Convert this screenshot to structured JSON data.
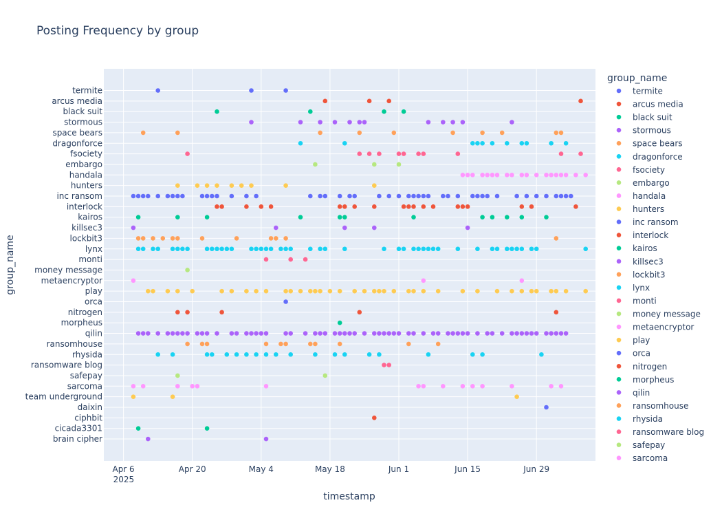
{
  "chart_data": {
    "type": "scatter",
    "title": "Posting Frequency by group",
    "xlabel": "timestamp",
    "ylabel": "group_name",
    "legend_title": "group_name",
    "legend_placement": "right",
    "grid": true,
    "x_ticks": [
      {
        "date": "2025-04-06",
        "label": "Apr 6",
        "sublabel": "2025"
      },
      {
        "date": "2025-04-20",
        "label": "Apr 20"
      },
      {
        "date": "2025-05-04",
        "label": "May 4"
      },
      {
        "date": "2025-05-18",
        "label": "May 18"
      },
      {
        "date": "2025-06-01",
        "label": "Jun 1"
      },
      {
        "date": "2025-06-15",
        "label": "Jun 15"
      },
      {
        "date": "2025-06-29",
        "label": "Jun 29"
      }
    ],
    "xlim": [
      "2025-04-02",
      "2025-07-11"
    ],
    "categories": [
      "termite",
      "arcus media",
      "black suit",
      "stormous",
      "space bears",
      "dragonforce",
      "fsociety",
      "embargo",
      "handala",
      "hunters",
      "inc ransom",
      "interlock",
      "kairos",
      "killsec3",
      "lockbit3",
      "lynx",
      "monti",
      "money message",
      "metaencryptor",
      "play",
      "orca",
      "nitrogen",
      "morpheus",
      "qilin",
      "ransomhouse",
      "rhysida",
      "ransomware blog",
      "safepay",
      "sarcoma",
      "team underground",
      "daixin",
      "ciphbit",
      "cicada3301",
      "brain cipher"
    ],
    "legend": [
      {
        "name": "termite",
        "color": "#636efa"
      },
      {
        "name": "arcus media",
        "color": "#EF553B"
      },
      {
        "name": "black suit",
        "color": "#00cc96"
      },
      {
        "name": "stormous",
        "color": "#ab63fa"
      },
      {
        "name": "space bears",
        "color": "#FFA15A"
      },
      {
        "name": "dragonforce",
        "color": "#19d3f3"
      },
      {
        "name": "fsociety",
        "color": "#FF6692"
      },
      {
        "name": "embargo",
        "color": "#B6E880"
      },
      {
        "name": "handala",
        "color": "#FF97FF"
      },
      {
        "name": "hunters",
        "color": "#FECB52"
      },
      {
        "name": "inc ransom",
        "color": "#636efa"
      },
      {
        "name": "interlock",
        "color": "#EF553B"
      },
      {
        "name": "kairos",
        "color": "#00cc96"
      },
      {
        "name": "killsec3",
        "color": "#ab63fa"
      },
      {
        "name": "lockbit3",
        "color": "#FFA15A"
      },
      {
        "name": "lynx",
        "color": "#19d3f3"
      },
      {
        "name": "monti",
        "color": "#FF6692"
      },
      {
        "name": "money message",
        "color": "#B6E880"
      },
      {
        "name": "metaencryptor",
        "color": "#FF97FF"
      },
      {
        "name": "play",
        "color": "#FECB52"
      },
      {
        "name": "orca",
        "color": "#636efa"
      },
      {
        "name": "nitrogen",
        "color": "#EF553B"
      },
      {
        "name": "morpheus",
        "color": "#00cc96"
      },
      {
        "name": "qilin",
        "color": "#ab63fa"
      },
      {
        "name": "ransomhouse",
        "color": "#FFA15A"
      },
      {
        "name": "rhysida",
        "color": "#19d3f3"
      },
      {
        "name": "ransomware blog",
        "color": "#FF6692"
      },
      {
        "name": "safepay",
        "color": "#B6E880"
      },
      {
        "name": "sarcoma",
        "color": "#FF97FF"
      }
    ],
    "series": [
      {
        "name": "termite",
        "color": "#636efa",
        "x": [
          "2025-04-13",
          "2025-05-02",
          "2025-05-09"
        ]
      },
      {
        "name": "arcus media",
        "color": "#EF553B",
        "x": [
          "2025-05-17",
          "2025-05-26",
          "2025-05-30",
          "2025-07-08"
        ]
      },
      {
        "name": "black suit",
        "color": "#00cc96",
        "x": [
          "2025-04-25",
          "2025-05-14",
          "2025-05-29",
          "2025-06-02"
        ]
      },
      {
        "name": "stormous",
        "color": "#ab63fa",
        "x": [
          "2025-05-02",
          "2025-05-12",
          "2025-05-16",
          "2025-05-19",
          "2025-05-22",
          "2025-05-24",
          "2025-05-25",
          "2025-06-07",
          "2025-06-10",
          "2025-06-12",
          "2025-06-14",
          "2025-06-24"
        ]
      },
      {
        "name": "space bears",
        "color": "#FFA15A",
        "x": [
          "2025-04-10",
          "2025-04-17",
          "2025-05-16",
          "2025-05-24",
          "2025-05-31",
          "2025-06-12",
          "2025-06-18",
          "2025-06-22",
          "2025-07-03",
          "2025-07-04"
        ]
      },
      {
        "name": "dragonforce",
        "color": "#19d3f3",
        "x": [
          "2025-05-12",
          "2025-05-21",
          "2025-06-16",
          "2025-06-17",
          "2025-06-18",
          "2025-06-20",
          "2025-06-23",
          "2025-06-26",
          "2025-06-27",
          "2025-07-02",
          "2025-07-05"
        ]
      },
      {
        "name": "fsociety",
        "color": "#FF6692",
        "x": [
          "2025-04-19",
          "2025-05-24",
          "2025-05-26",
          "2025-05-28",
          "2025-06-01",
          "2025-06-02",
          "2025-06-05",
          "2025-06-06",
          "2025-06-13",
          "2025-07-04",
          "2025-07-08"
        ]
      },
      {
        "name": "embargo",
        "color": "#B6E880",
        "x": [
          "2025-05-15",
          "2025-05-27",
          "2025-06-01"
        ]
      },
      {
        "name": "handala",
        "color": "#FF97FF",
        "x": [
          "2025-06-14",
          "2025-06-15",
          "2025-06-16",
          "2025-06-18",
          "2025-06-19",
          "2025-06-20",
          "2025-06-21",
          "2025-06-23",
          "2025-06-24",
          "2025-06-26",
          "2025-06-27",
          "2025-06-29",
          "2025-07-01",
          "2025-07-02",
          "2025-07-03",
          "2025-07-04",
          "2025-07-05",
          "2025-07-07",
          "2025-07-09"
        ]
      },
      {
        "name": "hunters",
        "color": "#FECB52",
        "x": [
          "2025-04-17",
          "2025-04-21",
          "2025-04-23",
          "2025-04-25",
          "2025-04-28",
          "2025-04-30",
          "2025-05-02",
          "2025-05-09",
          "2025-05-27"
        ]
      },
      {
        "name": "inc ransom",
        "color": "#636efa",
        "x": [
          "2025-04-08",
          "2025-04-09",
          "2025-04-10",
          "2025-04-11",
          "2025-04-13",
          "2025-04-15",
          "2025-04-16",
          "2025-04-17",
          "2025-04-18",
          "2025-04-22",
          "2025-04-23",
          "2025-04-24",
          "2025-04-25",
          "2025-04-28",
          "2025-05-01",
          "2025-05-03",
          "2025-05-14",
          "2025-05-16",
          "2025-05-17",
          "2025-05-20",
          "2025-05-22",
          "2025-05-23",
          "2025-05-28",
          "2025-05-30",
          "2025-06-01",
          "2025-06-03",
          "2025-06-04",
          "2025-06-05",
          "2025-06-06",
          "2025-06-07",
          "2025-06-10",
          "2025-06-11",
          "2025-06-13",
          "2025-06-16",
          "2025-06-17",
          "2025-06-18",
          "2025-06-19",
          "2025-06-21",
          "2025-06-25",
          "2025-06-27",
          "2025-06-29",
          "2025-07-01",
          "2025-07-03",
          "2025-07-04",
          "2025-07-05",
          "2025-07-06"
        ]
      },
      {
        "name": "interlock",
        "color": "#EF553B",
        "x": [
          "2025-04-25",
          "2025-04-26",
          "2025-05-01",
          "2025-05-04",
          "2025-05-06",
          "2025-05-20",
          "2025-05-21",
          "2025-05-23",
          "2025-05-27",
          "2025-06-02",
          "2025-06-03",
          "2025-06-04",
          "2025-06-06",
          "2025-06-08",
          "2025-06-13",
          "2025-06-14",
          "2025-06-15",
          "2025-06-26",
          "2025-06-28",
          "2025-07-07"
        ]
      },
      {
        "name": "kairos",
        "color": "#00cc96",
        "x": [
          "2025-04-09",
          "2025-04-17",
          "2025-04-23",
          "2025-05-12",
          "2025-05-20",
          "2025-05-21",
          "2025-06-04",
          "2025-06-18",
          "2025-06-20",
          "2025-06-23",
          "2025-06-26",
          "2025-07-01"
        ]
      },
      {
        "name": "killsec3",
        "color": "#ab63fa",
        "x": [
          "2025-04-08",
          "2025-05-07",
          "2025-05-21",
          "2025-05-27",
          "2025-06-15"
        ]
      },
      {
        "name": "lockbit3",
        "color": "#FFA15A",
        "x": [
          "2025-04-09",
          "2025-04-10",
          "2025-04-12",
          "2025-04-14",
          "2025-04-16",
          "2025-04-17",
          "2025-04-22",
          "2025-04-29",
          "2025-05-06",
          "2025-05-07",
          "2025-05-09",
          "2025-07-03"
        ]
      },
      {
        "name": "lynx",
        "color": "#19d3f3",
        "x": [
          "2025-04-09",
          "2025-04-10",
          "2025-04-12",
          "2025-04-13",
          "2025-04-16",
          "2025-04-17",
          "2025-04-18",
          "2025-04-19",
          "2025-04-23",
          "2025-04-24",
          "2025-04-25",
          "2025-04-26",
          "2025-04-27",
          "2025-04-28",
          "2025-05-02",
          "2025-05-03",
          "2025-05-04",
          "2025-05-05",
          "2025-05-06",
          "2025-05-08",
          "2025-05-09",
          "2025-05-10",
          "2025-05-14",
          "2025-05-16",
          "2025-05-17",
          "2025-05-21",
          "2025-05-29",
          "2025-06-01",
          "2025-06-02",
          "2025-06-04",
          "2025-06-05",
          "2025-06-06",
          "2025-06-07",
          "2025-06-08",
          "2025-06-09",
          "2025-06-13",
          "2025-06-17",
          "2025-06-20",
          "2025-06-21",
          "2025-06-23",
          "2025-06-24",
          "2025-06-25",
          "2025-06-26",
          "2025-06-28",
          "2025-06-29",
          "2025-07-09"
        ]
      },
      {
        "name": "monti",
        "color": "#FF6692",
        "x": [
          "2025-05-05",
          "2025-05-10",
          "2025-05-13"
        ]
      },
      {
        "name": "money message",
        "color": "#B6E880",
        "x": [
          "2025-04-19"
        ]
      },
      {
        "name": "metaencryptor",
        "color": "#FF97FF",
        "x": [
          "2025-04-08",
          "2025-06-06",
          "2025-06-26"
        ]
      },
      {
        "name": "play",
        "color": "#FECB52",
        "x": [
          "2025-04-11",
          "2025-04-12",
          "2025-04-15",
          "2025-04-17",
          "2025-04-20",
          "2025-04-26",
          "2025-04-28",
          "2025-05-01",
          "2025-05-03",
          "2025-05-05",
          "2025-05-09",
          "2025-05-10",
          "2025-05-12",
          "2025-05-14",
          "2025-05-15",
          "2025-05-16",
          "2025-05-18",
          "2025-05-20",
          "2025-05-23",
          "2025-05-25",
          "2025-05-27",
          "2025-05-28",
          "2025-05-29",
          "2025-05-31",
          "2025-06-03",
          "2025-06-04",
          "2025-06-06",
          "2025-06-09",
          "2025-06-14",
          "2025-06-17",
          "2025-06-21",
          "2025-06-24",
          "2025-06-26",
          "2025-06-28",
          "2025-06-29",
          "2025-07-02",
          "2025-07-03",
          "2025-07-05",
          "2025-07-09"
        ]
      },
      {
        "name": "orca",
        "color": "#636efa",
        "x": [
          "2025-05-09"
        ]
      },
      {
        "name": "nitrogen",
        "color": "#EF553B",
        "x": [
          "2025-04-17",
          "2025-04-19",
          "2025-04-26",
          "2025-05-24",
          "2025-07-03"
        ]
      },
      {
        "name": "morpheus",
        "color": "#00cc96",
        "x": [
          "2025-05-20"
        ]
      },
      {
        "name": "qilin",
        "color": "#ab63fa",
        "x": [
          "2025-04-09",
          "2025-04-10",
          "2025-04-11",
          "2025-04-13",
          "2025-04-15",
          "2025-04-16",
          "2025-04-17",
          "2025-04-18",
          "2025-04-19",
          "2025-04-21",
          "2025-04-22",
          "2025-04-23",
          "2025-04-25",
          "2025-04-28",
          "2025-04-29",
          "2025-05-01",
          "2025-05-02",
          "2025-05-03",
          "2025-05-04",
          "2025-05-05",
          "2025-05-09",
          "2025-05-10",
          "2025-05-13",
          "2025-05-15",
          "2025-05-16",
          "2025-05-17",
          "2025-05-19",
          "2025-05-20",
          "2025-05-21",
          "2025-05-22",
          "2025-05-23",
          "2025-05-25",
          "2025-05-27",
          "2025-05-28",
          "2025-05-29",
          "2025-05-30",
          "2025-05-31",
          "2025-06-01",
          "2025-06-03",
          "2025-06-04",
          "2025-06-06",
          "2025-06-08",
          "2025-06-09",
          "2025-06-11",
          "2025-06-12",
          "2025-06-13",
          "2025-06-14",
          "2025-06-15",
          "2025-06-17",
          "2025-06-19",
          "2025-06-20",
          "2025-06-22",
          "2025-06-24",
          "2025-06-25",
          "2025-06-26",
          "2025-06-27",
          "2025-06-28",
          "2025-06-29",
          "2025-07-01",
          "2025-07-02",
          "2025-07-03",
          "2025-07-04",
          "2025-07-05"
        ]
      },
      {
        "name": "ransomhouse",
        "color": "#FFA15A",
        "x": [
          "2025-04-19",
          "2025-04-22",
          "2025-04-23",
          "2025-05-05",
          "2025-05-08",
          "2025-05-09",
          "2025-05-14",
          "2025-05-15",
          "2025-05-20",
          "2025-06-03",
          "2025-06-09"
        ]
      },
      {
        "name": "rhysida",
        "color": "#19d3f3",
        "x": [
          "2025-04-13",
          "2025-04-16",
          "2025-04-23",
          "2025-04-24",
          "2025-04-27",
          "2025-04-29",
          "2025-05-01",
          "2025-05-03",
          "2025-05-05",
          "2025-05-07",
          "2025-05-10",
          "2025-05-15",
          "2025-05-19",
          "2025-05-21",
          "2025-05-26",
          "2025-05-28",
          "2025-06-07",
          "2025-06-16",
          "2025-06-18",
          "2025-06-30"
        ]
      },
      {
        "name": "ransomware blog",
        "color": "#FF6692",
        "x": [
          "2025-05-29",
          "2025-05-30"
        ]
      },
      {
        "name": "safepay",
        "color": "#B6E880",
        "x": [
          "2025-04-17",
          "2025-05-17"
        ]
      },
      {
        "name": "sarcoma",
        "color": "#FF97FF",
        "x": [
          "2025-04-08",
          "2025-04-10",
          "2025-04-17",
          "2025-04-20",
          "2025-04-21",
          "2025-05-05",
          "2025-06-05",
          "2025-06-06",
          "2025-06-10",
          "2025-06-14",
          "2025-06-16",
          "2025-06-18",
          "2025-06-24",
          "2025-07-02",
          "2025-07-04"
        ]
      },
      {
        "name": "team underground",
        "color": "#FECB52",
        "x": [
          "2025-04-08",
          "2025-04-16",
          "2025-06-25"
        ]
      },
      {
        "name": "daixin",
        "color": "#636efa",
        "x": [
          "2025-07-01"
        ]
      },
      {
        "name": "ciphbit",
        "color": "#EF553B",
        "x": [
          "2025-05-27"
        ]
      },
      {
        "name": "cicada3301",
        "color": "#00cc96",
        "x": [
          "2025-04-09",
          "2025-04-23"
        ]
      },
      {
        "name": "brain cipher",
        "color": "#ab63fa",
        "x": [
          "2025-04-11",
          "2025-05-05"
        ]
      }
    ]
  }
}
